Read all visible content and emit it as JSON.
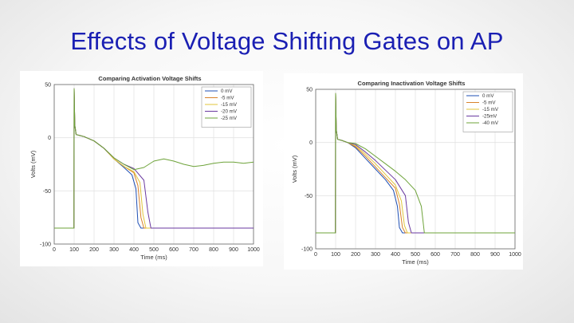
{
  "slide": {
    "title": "Effects of Voltage Shifting Gates on AP"
  },
  "colors": {
    "title": "#1a1fb3",
    "series": [
      "#1f4fb4",
      "#d9822b",
      "#e0c53a",
      "#6a3aa0",
      "#6ea33a"
    ]
  },
  "chart_data": [
    {
      "type": "line",
      "title": "Comparing Activation Voltage Shifts",
      "xlabel": "Time (ms)",
      "ylabel": "Volts (mV)",
      "xlim": [
        0,
        1000
      ],
      "ylim": [
        -100,
        50
      ],
      "xticks": [
        0,
        100,
        200,
        300,
        400,
        500,
        600,
        700,
        800,
        900,
        1000
      ],
      "yticks": [
        -100,
        -50,
        0,
        50
      ],
      "grid": true,
      "legend_position": "top-right",
      "series": [
        {
          "name": "0 mV",
          "x": [
            0,
            99,
            100,
            103,
            110,
            130,
            150,
            200,
            250,
            300,
            350,
            390,
            410,
            420,
            435,
            450,
            1000
          ],
          "y": [
            -85,
            -85,
            46,
            12,
            3,
            2,
            1,
            -3,
            -10,
            -20,
            -28,
            -35,
            -48,
            -80,
            -85,
            -85,
            -85
          ]
        },
        {
          "name": "-5 mV",
          "x": [
            0,
            99,
            100,
            103,
            110,
            130,
            150,
            200,
            250,
            300,
            350,
            400,
            420,
            435,
            450,
            470,
            1000
          ],
          "y": [
            -85,
            -85,
            46,
            12,
            3,
            2,
            1,
            -3,
            -10,
            -20,
            -27,
            -33,
            -45,
            -75,
            -85,
            -85,
            -85
          ]
        },
        {
          "name": "-15 mV",
          "x": [
            0,
            99,
            100,
            103,
            110,
            130,
            150,
            200,
            250,
            300,
            350,
            400,
            430,
            445,
            460,
            480,
            1000
          ],
          "y": [
            -85,
            -85,
            46,
            12,
            3,
            2,
            1,
            -3,
            -10,
            -20,
            -27,
            -32,
            -42,
            -72,
            -85,
            -85,
            -85
          ]
        },
        {
          "name": "-20 mV",
          "x": [
            0,
            99,
            100,
            103,
            110,
            130,
            150,
            200,
            250,
            300,
            350,
            400,
            450,
            470,
            485,
            500,
            1000
          ],
          "y": [
            -85,
            -85,
            46,
            12,
            3,
            2,
            1,
            -3,
            -10,
            -19,
            -25,
            -29,
            -40,
            -70,
            -85,
            -85,
            -85
          ]
        },
        {
          "name": "-25 mV",
          "x": [
            0,
            99,
            100,
            103,
            110,
            130,
            150,
            200,
            250,
            300,
            350,
            400,
            450,
            500,
            550,
            600,
            650,
            700,
            750,
            800,
            850,
            900,
            950,
            1000
          ],
          "y": [
            -85,
            -85,
            46,
            12,
            3,
            2,
            1,
            -3,
            -10,
            -19,
            -25,
            -30,
            -28,
            -22,
            -20,
            -22,
            -25,
            -27,
            -26,
            -24,
            -23,
            -23,
            -24,
            -23
          ]
        }
      ]
    },
    {
      "type": "line",
      "title": "Comparing Inactivation Voltage Shifts",
      "xlabel": "Time (ms)",
      "ylabel": "Volts (mV)",
      "xlim": [
        0,
        1000
      ],
      "ylim": [
        -100,
        50
      ],
      "xticks": [
        0,
        100,
        200,
        300,
        400,
        500,
        600,
        700,
        800,
        900,
        1000
      ],
      "yticks": [
        -100,
        -50,
        0,
        50
      ],
      "grid": true,
      "legend_position": "top-right",
      "series": [
        {
          "name": "0 mV",
          "x": [
            0,
            99,
            100,
            103,
            110,
            130,
            160,
            200,
            250,
            300,
            350,
            390,
            410,
            420,
            435,
            450,
            1000
          ],
          "y": [
            -85,
            -85,
            46,
            12,
            3,
            2,
            0,
            -5,
            -15,
            -25,
            -35,
            -45,
            -60,
            -80,
            -85,
            -85,
            -85
          ]
        },
        {
          "name": "-5 mV",
          "x": [
            0,
            99,
            100,
            103,
            110,
            130,
            160,
            200,
            250,
            300,
            350,
            400,
            420,
            435,
            450,
            465,
            1000
          ],
          "y": [
            -85,
            -85,
            46,
            12,
            3,
            2,
            0,
            -4,
            -13,
            -23,
            -33,
            -43,
            -58,
            -80,
            -85,
            -85,
            -85
          ]
        },
        {
          "name": "-15 mV",
          "x": [
            0,
            99,
            100,
            103,
            110,
            130,
            160,
            200,
            250,
            300,
            350,
            400,
            430,
            445,
            460,
            475,
            1000
          ],
          "y": [
            -85,
            -85,
            46,
            12,
            3,
            2,
            0,
            -3,
            -11,
            -20,
            -30,
            -40,
            -55,
            -78,
            -85,
            -85,
            -85
          ]
        },
        {
          "name": "-25mV",
          "x": [
            0,
            99,
            100,
            103,
            110,
            130,
            160,
            200,
            250,
            300,
            350,
            400,
            450,
            465,
            480,
            495,
            1000
          ],
          "y": [
            -85,
            -85,
            46,
            12,
            3,
            2,
            0,
            -2,
            -9,
            -17,
            -26,
            -35,
            -50,
            -75,
            -85,
            -85,
            -85
          ]
        },
        {
          "name": "-40 mV",
          "x": [
            0,
            99,
            100,
            103,
            110,
            130,
            160,
            200,
            250,
            300,
            350,
            400,
            450,
            500,
            530,
            545,
            560,
            1000
          ],
          "y": [
            -85,
            -85,
            46,
            12,
            3,
            2,
            0,
            -1,
            -6,
            -13,
            -20,
            -27,
            -35,
            -45,
            -60,
            -85,
            -85,
            -85
          ]
        }
      ]
    }
  ]
}
